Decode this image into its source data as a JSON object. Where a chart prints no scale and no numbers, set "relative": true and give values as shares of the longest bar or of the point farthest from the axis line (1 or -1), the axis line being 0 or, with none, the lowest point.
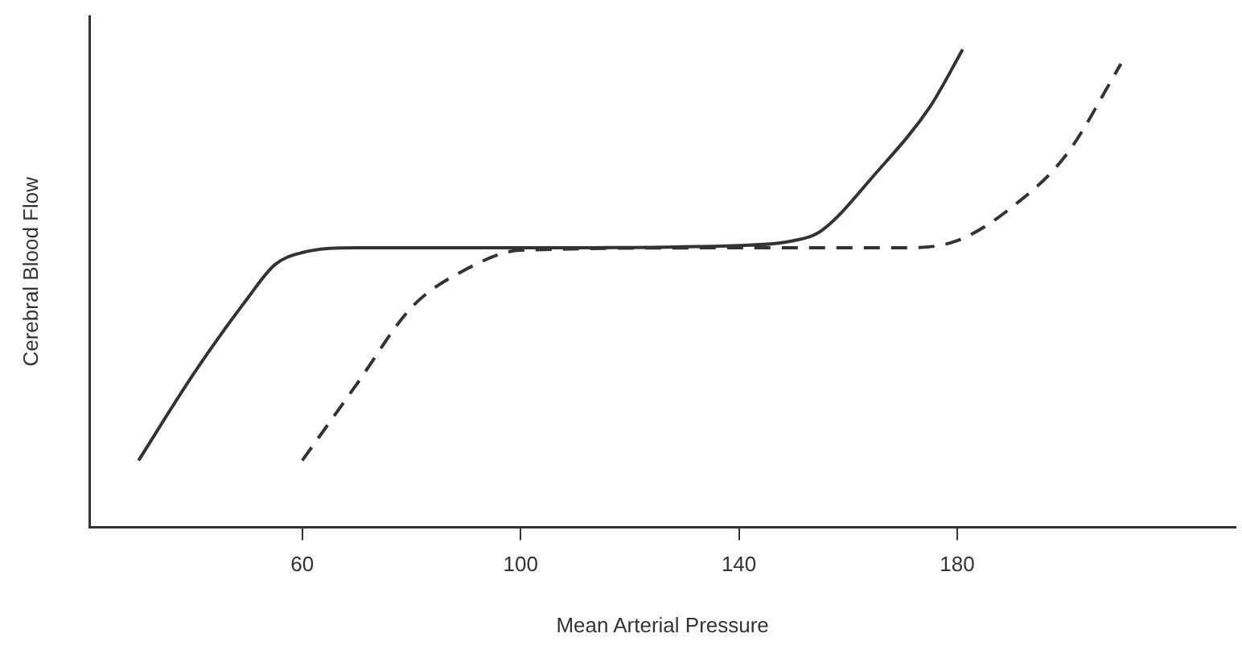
{
  "chart_data": {
    "type": "line",
    "relative": true,
    "xlabel": "Mean Arterial Pressure",
    "ylabel": "Cerebral Blood Flow",
    "xlim": [
      21,
      231
    ],
    "xticks": [
      60,
      100,
      140,
      180
    ],
    "grid": false,
    "legend": false,
    "marker": "none",
    "series": [
      {
        "color": "#333333",
        "line_style": "solid",
        "x": [
          30,
          40,
          50,
          55,
          60,
          70,
          100,
          140,
          150,
          155,
          165,
          175,
          181
        ],
        "values": [
          0.14,
          0.32,
          0.48,
          0.55,
          0.575,
          0.585,
          0.585,
          0.59,
          0.6,
          0.62,
          0.74,
          0.88,
          1
        ]
      },
      {
        "color": "#333333",
        "line_style": "dashed",
        "x": [
          60,
          70,
          80,
          90,
          100,
          140,
          170,
          180,
          190,
          200,
          210
        ],
        "values": [
          0.14,
          0.3,
          0.46,
          0.54,
          0.58,
          0.585,
          0.585,
          0.6,
          0.67,
          0.78,
          0.97
        ]
      }
    ]
  }
}
